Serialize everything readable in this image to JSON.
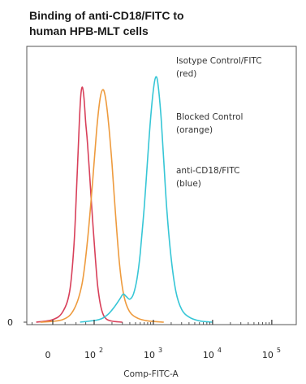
{
  "chart_data": {
    "type": "histogram",
    "title": [
      "Binding of anti-CD18/FITC to",
      "human HPB-MLT cells"
    ],
    "xlabel": "Comp-FITC-A",
    "x_scale": "biexponential",
    "x_ticks": [
      {
        "value": 0,
        "base": "0",
        "exp": ""
      },
      {
        "value": 100,
        "base": "10",
        "exp": "2"
      },
      {
        "value": 1000,
        "base": "10",
        "exp": "3"
      },
      {
        "value": 10000,
        "base": "10",
        "exp": "4"
      },
      {
        "value": 100000,
        "base": "10",
        "exp": "5"
      }
    ],
    "y_ticks": [
      {
        "value": 0,
        "label": "0"
      }
    ],
    "ylim": [
      0,
      100
    ],
    "annotations": [
      {
        "lines": [
          "Isotype Control/FITC",
          "(red)"
        ]
      },
      {
        "lines": [
          "Blocked Control",
          "(orange)"
        ]
      },
      {
        "lines": [
          "anti-CD18/FITC",
          "(blue)"
        ]
      }
    ],
    "series": [
      {
        "color": "#d8405a",
        "points": [
          [
            -40,
            0
          ],
          [
            0,
            1
          ],
          [
            20,
            4
          ],
          [
            35,
            12
          ],
          [
            45,
            30
          ],
          [
            52,
            55
          ],
          [
            58,
            78
          ],
          [
            62,
            89
          ],
          [
            66,
            92
          ],
          [
            70,
            88
          ],
          [
            75,
            78
          ],
          [
            80,
            70
          ],
          [
            87,
            56
          ],
          [
            95,
            40
          ],
          [
            105,
            25
          ],
          [
            115,
            14
          ],
          [
            130,
            6
          ],
          [
            150,
            2
          ],
          [
            190,
            0.5
          ],
          [
            300,
            0
          ]
        ]
      },
      {
        "color": "#ee9b3e",
        "points": [
          [
            -30,
            0
          ],
          [
            20,
            1
          ],
          [
            45,
            5
          ],
          [
            65,
            15
          ],
          [
            80,
            32
          ],
          [
            95,
            55
          ],
          [
            110,
            75
          ],
          [
            125,
            87
          ],
          [
            140,
            91
          ],
          [
            155,
            88
          ],
          [
            175,
            78
          ],
          [
            200,
            62
          ],
          [
            230,
            42
          ],
          [
            270,
            22
          ],
          [
            320,
            10
          ],
          [
            400,
            4
          ],
          [
            550,
            1.5
          ],
          [
            800,
            0.5
          ],
          [
            1500,
            0
          ]
        ]
      },
      {
        "color": "#36c6d6",
        "points": [
          [
            60,
            0
          ],
          [
            120,
            1
          ],
          [
            170,
            3
          ],
          [
            220,
            6
          ],
          [
            270,
            9
          ],
          [
            310,
            11
          ],
          [
            350,
            10
          ],
          [
            400,
            9
          ],
          [
            460,
            11
          ],
          [
            530,
            17
          ],
          [
            600,
            27
          ],
          [
            700,
            45
          ],
          [
            800,
            64
          ],
          [
            900,
            80
          ],
          [
            1000,
            91
          ],
          [
            1100,
            96
          ],
          [
            1200,
            93
          ],
          [
            1350,
            80
          ],
          [
            1500,
            63
          ],
          [
            1700,
            43
          ],
          [
            2000,
            25
          ],
          [
            2400,
            12
          ],
          [
            3000,
            5
          ],
          [
            4000,
            2
          ],
          [
            6000,
            0.5
          ],
          [
            10000,
            0
          ]
        ]
      }
    ]
  }
}
